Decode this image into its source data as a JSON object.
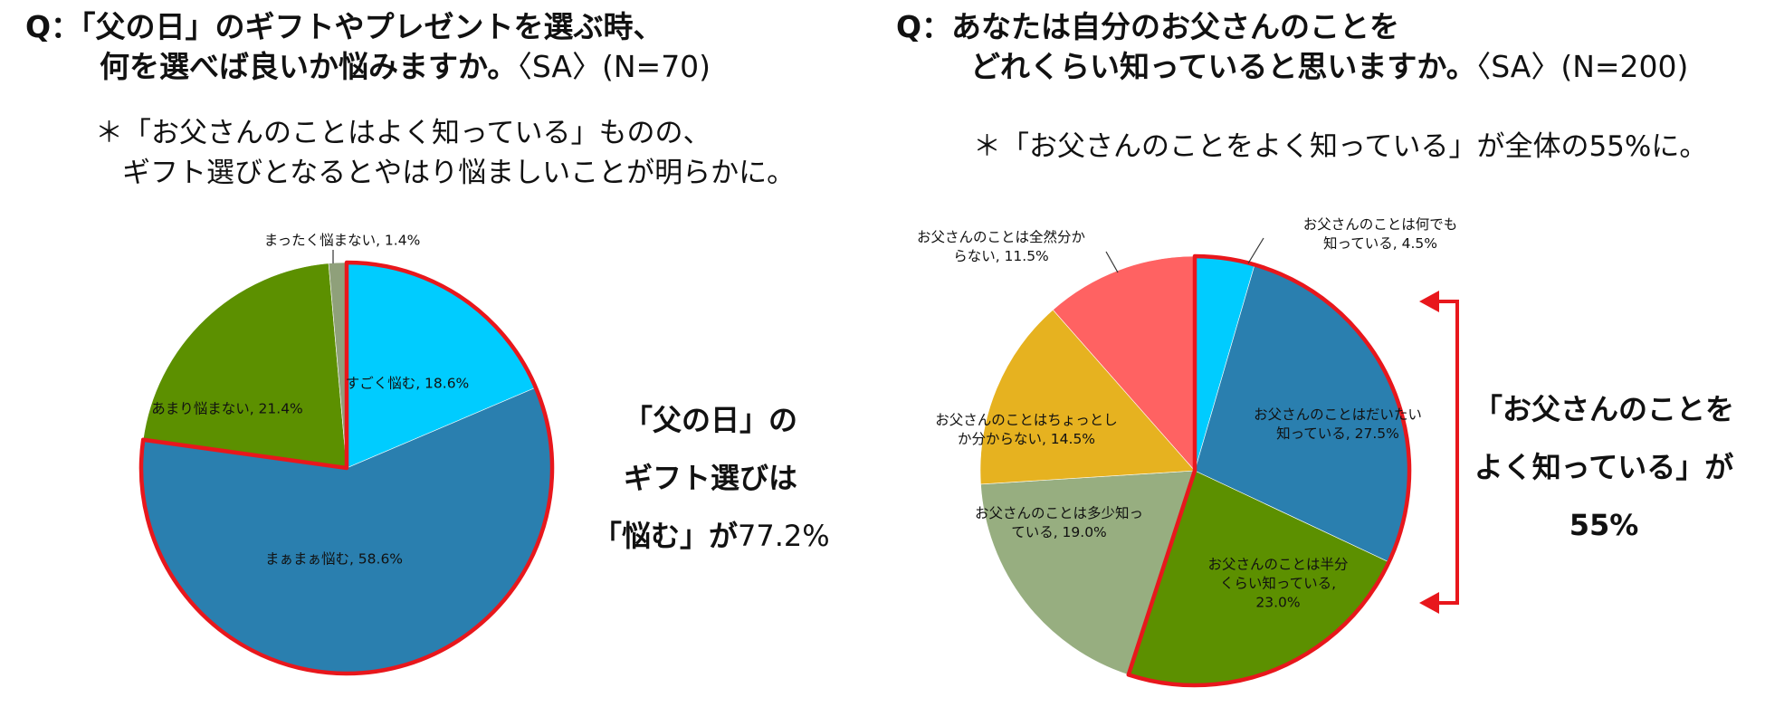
{
  "chart_data": [
    {
      "type": "pie",
      "question": {
        "line1": "Q：「父の日」のギフトやプレゼントを選ぶ時、",
        "line2": "何を選べば良いか悩みますか。",
        "suffix": "〈SA〉(N=70)"
      },
      "note": [
        "＊「お父さんのことはよく知っている」ものの、",
        "ギフト選びとなるとやはり悩ましいことが明らかに。"
      ],
      "slices": [
        {
          "label": [
            "すごく悩む, 18.6%"
          ],
          "value": 18.6,
          "color": "#00CCFF",
          "highlight": true
        },
        {
          "label": [
            "まぁまぁ悩む, 58.6%"
          ],
          "value": 58.6,
          "color": "#2A7FAF",
          "highlight": true
        },
        {
          "label": [],
          "value": 0.0,
          "color": "#6E6E6E"
        },
        {
          "label": [
            "あまり悩まない, 21.4%"
          ],
          "value": 21.4,
          "color": "#5C9000"
        },
        {
          "label": [
            "まったく悩まない, 1.4%"
          ],
          "value": 1.4,
          "color": "#8FA07A"
        }
      ],
      "callout": {
        "lines": [
          "「父の日」の",
          "ギフト選びは",
          "「悩む」が"
        ],
        "value": "77.2%"
      }
    },
    {
      "type": "pie",
      "question": {
        "line1": "Q：あなたは自分のお父さんのことを",
        "line2": "どれくらい知っていると思いますか。",
        "suffix": "〈SA〉(N=200)"
      },
      "note": [
        "＊「お父さんのことをよく知っている」が全体の55%に。"
      ],
      "slices": [
        {
          "label": [
            "お父さんのことは何でも",
            "知っている, 4.5%"
          ],
          "value": 4.5,
          "color": "#00CCFF",
          "highlight": true
        },
        {
          "label": [
            "お父さんのことはだいたい",
            "知っている, 27.5%"
          ],
          "value": 27.5,
          "color": "#2A7FAF",
          "highlight": true
        },
        {
          "label": [
            "お父さんのことは半分",
            "くらい知っている,",
            "23.0%"
          ],
          "value": 23.0,
          "color": "#5C9000",
          "highlight": true
        },
        {
          "label": [
            "お父さんのことは多少知っ",
            "ている, 19.0%"
          ],
          "value": 19.0,
          "color": "#97AE80"
        },
        {
          "label": [
            "お父さんのことはちょっとし",
            "か分からない, 14.5%"
          ],
          "value": 14.5,
          "color": "#E6B220"
        },
        {
          "label": [
            "お父さんのことは全然分か",
            "らない, 11.5%"
          ],
          "value": 11.5,
          "color": "#FF6262"
        }
      ],
      "callout": {
        "lines": [
          "「お父さんのことを",
          "よく知っている」が",
          "55%"
        ]
      }
    }
  ],
  "colors": {
    "highlight_outline": "#E8171C",
    "bracket": "#E8171C"
  }
}
